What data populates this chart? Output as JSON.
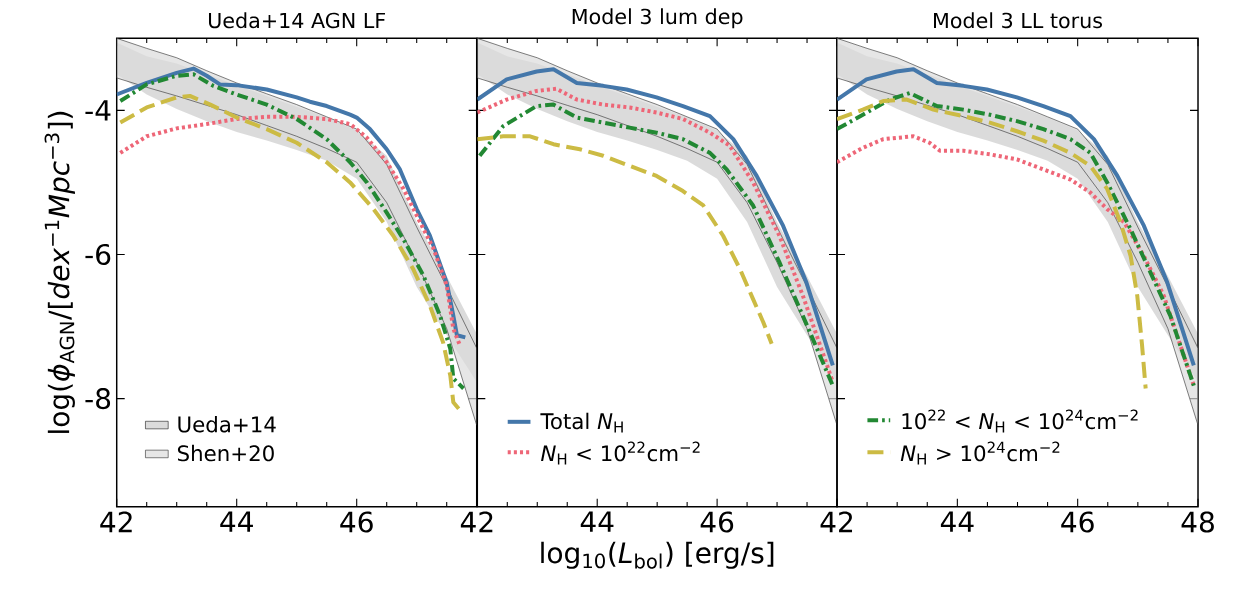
{
  "chart_data": [
    {
      "type": "line",
      "title": "Ueda+14 AGN LF",
      "ylabel": "log(*ϕ*$_{AGN}$/[*dex*$^{−1}$*Mpc*$^{−3}$])",
      "xlim": [
        42,
        48
      ],
      "ylim": [
        -9.5,
        -3
      ],
      "xticks": [
        42,
        44,
        46,
        {
          "value": 48,
          "label": null
        }
      ],
      "yticks": [
        -4,
        -6,
        -8
      ],
      "legend": "bottom left",
      "series": [
        {
          "name": "Ueda+14",
          "color": "#000000",
          "x": [
            42,
            42.5,
            43,
            43.5,
            44,
            44.5,
            45,
            45.5,
            46,
            46.5,
            47,
            47.5,
            48
          ],
          "values": [
            null,
            null,
            null,
            null,
            null,
            null,
            null,
            null,
            null,
            null,
            null,
            null,
            null
          ],
          "upper": [
            -3.06,
            -3.25,
            -3.35,
            -3.5,
            -3.65,
            -3.8,
            -3.95,
            -4.1,
            -4.28,
            -4.63,
            -5.55,
            -6.3,
            -7.1
          ],
          "lower": [
            -3.5,
            -3.78,
            -3.98,
            -4.15,
            -4.3,
            -4.42,
            -4.55,
            -4.7,
            -4.95,
            -5.55,
            -6.45,
            -7.12,
            -7.77
          ]
        },
        {
          "name": "Shen+20",
          "color": "#dcdcdc",
          "x": [
            42,
            42.5,
            43,
            43.5,
            44,
            44.5,
            45,
            45.5,
            46,
            46.5,
            47,
            47.5,
            48
          ],
          "values": [
            null,
            null,
            null,
            null,
            null,
            null,
            null,
            null,
            null,
            null,
            null,
            null,
            null
          ],
          "upper": [
            -3.0,
            -3.14,
            -3.27,
            -3.45,
            -3.62,
            -3.77,
            -3.92,
            -4.09,
            -4.26,
            -4.75,
            -5.62,
            -6.45,
            -7.3
          ],
          "lower": [
            -3.55,
            -3.68,
            -3.8,
            -3.93,
            -4.06,
            -4.21,
            -4.36,
            -4.53,
            -4.72,
            -5.28,
            -6.11,
            -7.03,
            -8.37
          ]
        },
        {
          "color": "#4477aa",
          "line_style": "solid",
          "x": [
            42,
            42.5,
            43,
            43.28,
            43.5,
            43.72,
            44,
            44.5,
            45,
            45.22,
            45.5,
            45.89,
            46,
            46.22,
            46.5,
            46.72,
            47,
            47.22,
            47.5,
            47.61,
            47.67,
            47.81
          ],
          "values": [
            -3.78,
            -3.62,
            -3.48,
            -3.42,
            -3.52,
            -3.64,
            -3.65,
            -3.71,
            -3.82,
            -3.88,
            -3.94,
            -4.06,
            -4.1,
            -4.26,
            -4.54,
            -4.82,
            -5.37,
            -5.74,
            -6.39,
            -6.85,
            -7.12,
            -7.15
          ]
        },
        {
          "color": "#ee6677",
          "line_style": "dotted",
          "x": [
            42.06,
            42.5,
            43,
            43.5,
            44,
            44.5,
            45,
            45.5,
            45.89,
            46.17,
            46.5,
            46.78,
            47,
            47.28,
            47.5,
            47.61,
            47.72
          ],
          "values": [
            -4.59,
            -4.36,
            -4.25,
            -4.19,
            -4.12,
            -4.09,
            -4.09,
            -4.12,
            -4.19,
            -4.38,
            -4.72,
            -5.09,
            -5.46,
            -5.92,
            -6.43,
            -7.03,
            -7.26
          ]
        },
        {
          "color": "#228833",
          "line_style": "dashdot",
          "x": [
            42.06,
            42.5,
            43,
            43.28,
            43.61,
            44,
            44.5,
            45,
            45.5,
            45.89,
            46.17,
            46.5,
            46.78,
            47.11,
            47.39,
            47.56,
            47.61,
            47.78
          ],
          "values": [
            -3.87,
            -3.64,
            -3.52,
            -3.5,
            -3.66,
            -3.78,
            -3.92,
            -4.12,
            -4.4,
            -4.72,
            -5.0,
            -5.42,
            -5.79,
            -6.29,
            -6.85,
            -7.31,
            -7.72,
            -7.86
          ]
        },
        {
          "color": "#ccbb44",
          "line_style": "dashed",
          "x": [
            42.06,
            42.5,
            43,
            43.22,
            43.56,
            44,
            44.5,
            45,
            45.5,
            45.89,
            46.28,
            46.61,
            46.94,
            47.22,
            47.44,
            47.56,
            47.61,
            47.72
          ],
          "values": [
            -4.17,
            -3.96,
            -3.82,
            -3.8,
            -3.92,
            -4.1,
            -4.26,
            -4.45,
            -4.72,
            -5.0,
            -5.37,
            -5.74,
            -6.2,
            -6.71,
            -7.22,
            -7.68,
            -8.05,
            -8.16
          ]
        }
      ]
    },
    {
      "type": "line",
      "title": "Model 3 lum dep",
      "xlabel": "log$_{10}$(*L*$_{bol}$) [erg/s]",
      "xlim": [
        42,
        48
      ],
      "ylim": [
        -9.5,
        -3
      ],
      "xticks": [
        42,
        44,
        46,
        {
          "value": 48,
          "label": null
        }
      ],
      "yticks": [
        -4,
        -6,
        -8
      ],
      "tick_labels": "x",
      "legend": "bottom left",
      "series": [
        {
          "color": "#000000",
          "x": [
            42,
            42.5,
            43,
            43.5,
            44,
            44.5,
            45,
            45.5,
            46,
            46.5,
            47,
            47.5,
            48
          ],
          "values": [
            null,
            null,
            null,
            null,
            null,
            null,
            null,
            null,
            null,
            null,
            null,
            null,
            null
          ],
          "upper": [
            -3.06,
            -3.25,
            -3.35,
            -3.5,
            -3.65,
            -3.8,
            -3.95,
            -4.1,
            -4.28,
            -4.63,
            -5.55,
            -6.3,
            -7.1
          ],
          "lower": [
            -3.5,
            -3.78,
            -3.98,
            -4.15,
            -4.3,
            -4.42,
            -4.55,
            -4.7,
            -4.95,
            -5.55,
            -6.45,
            -7.12,
            -7.77
          ]
        },
        {
          "color": "#dcdcdc",
          "x": [
            42,
            42.5,
            43,
            43.5,
            44,
            44.5,
            45,
            45.5,
            46,
            46.5,
            47,
            47.5,
            48
          ],
          "values": [
            null,
            null,
            null,
            null,
            null,
            null,
            null,
            null,
            null,
            null,
            null,
            null,
            null
          ],
          "upper": [
            -3.0,
            -3.14,
            -3.27,
            -3.45,
            -3.62,
            -3.77,
            -3.92,
            -4.09,
            -4.26,
            -4.75,
            -5.62,
            -6.45,
            -7.3
          ],
          "lower": [
            -3.55,
            -3.68,
            -3.8,
            -3.93,
            -4.06,
            -4.21,
            -4.36,
            -4.53,
            -4.72,
            -5.28,
            -6.11,
            -7.03,
            -8.37
          ]
        },
        {
          "name": "Total *N*$_{H}$",
          "color": "#4477aa",
          "line_style": "solid",
          "x": [
            42,
            42.49,
            42.99,
            43.27,
            43.66,
            44.1,
            44.49,
            44.99,
            45.43,
            45.88,
            46.27,
            46.66,
            47.1,
            47.49,
            47.93
          ],
          "values": [
            -3.85,
            -3.57,
            -3.46,
            -3.43,
            -3.62,
            -3.66,
            -3.71,
            -3.82,
            -3.94,
            -4.08,
            -4.4,
            -4.91,
            -5.6,
            -6.39,
            -7.54
          ]
        },
        {
          "name": "*N*$_{H}$ < 10$^{22}$cm$^{−2}$",
          "color": "#ee6677",
          "line_style": "dotted",
          "x": [
            42,
            42.49,
            42.99,
            43.32,
            43.66,
            44.1,
            44.54,
            44.99,
            45.43,
            45.88,
            46.21,
            46.6,
            47.04,
            47.43,
            47.93
          ],
          "values": [
            -4.03,
            -3.85,
            -3.73,
            -3.7,
            -3.85,
            -3.92,
            -3.96,
            -4.03,
            -4.12,
            -4.31,
            -4.49,
            -5.0,
            -5.74,
            -6.57,
            -7.77
          ]
        },
        {
          "color": "#228833",
          "line_style": "dashdot",
          "x": [
            42.04,
            42.43,
            42.99,
            43.27,
            43.66,
            44.1,
            44.54,
            44.99,
            45.43,
            45.88,
            46.16,
            46.6,
            47.04,
            47.43,
            47.93
          ],
          "values": [
            -4.63,
            -4.22,
            -3.94,
            -3.92,
            -4.1,
            -4.17,
            -4.24,
            -4.31,
            -4.4,
            -4.59,
            -4.82,
            -5.32,
            -6.11,
            -6.85,
            -7.82
          ]
        },
        {
          "color": "#ccbb44",
          "line_style": "dashed",
          "x": [
            42,
            42.43,
            42.88,
            43.27,
            43.71,
            44.1,
            44.54,
            44.99,
            45.43,
            45.77,
            46.1,
            46.38,
            46.6,
            46.77,
            46.91
          ],
          "values": [
            -4.4,
            -4.36,
            -4.36,
            -4.47,
            -4.54,
            -4.63,
            -4.77,
            -4.91,
            -5.12,
            -5.32,
            -5.74,
            -6.2,
            -6.62,
            -6.94,
            -7.24
          ]
        }
      ]
    },
    {
      "type": "line",
      "title": "Model 3 LL torus",
      "xlim": [
        42,
        48
      ],
      "ylim": [
        -9.5,
        -3
      ],
      "xticks": [
        42,
        44,
        46,
        48
      ],
      "yticks": [
        -4,
        -6,
        -8
      ],
      "tick_labels": "x",
      "legend": "bottom left",
      "series": [
        {
          "color": "#000000",
          "x": [
            42,
            42.5,
            43,
            43.5,
            44,
            44.5,
            45,
            45.5,
            46,
            46.5,
            47,
            47.5,
            48
          ],
          "values": [
            null,
            null,
            null,
            null,
            null,
            null,
            null,
            null,
            null,
            null,
            null,
            null,
            null
          ],
          "upper": [
            -3.06,
            -3.25,
            -3.35,
            -3.5,
            -3.65,
            -3.8,
            -3.95,
            -4.1,
            -4.28,
            -4.63,
            -5.55,
            -6.3,
            -7.1
          ],
          "lower": [
            -3.5,
            -3.78,
            -3.98,
            -4.15,
            -4.3,
            -4.42,
            -4.55,
            -4.7,
            -4.95,
            -5.55,
            -6.45,
            -7.12,
            -7.77
          ]
        },
        {
          "color": "#dcdcdc",
          "x": [
            42,
            42.5,
            43,
            43.5,
            44,
            44.5,
            45,
            45.5,
            46,
            46.5,
            47,
            47.5,
            48
          ],
          "values": [
            null,
            null,
            null,
            null,
            null,
            null,
            null,
            null,
            null,
            null,
            null,
            null,
            null
          ],
          "upper": [
            -3.0,
            -3.14,
            -3.27,
            -3.45,
            -3.62,
            -3.77,
            -3.92,
            -4.09,
            -4.26,
            -4.75,
            -5.62,
            -6.45,
            -7.3
          ],
          "lower": [
            -3.55,
            -3.68,
            -3.8,
            -3.93,
            -4.06,
            -4.21,
            -4.36,
            -4.53,
            -4.72,
            -5.28,
            -6.11,
            -7.03,
            -8.37
          ]
        },
        {
          "color": "#4477aa",
          "line_style": "solid",
          "x": [
            42,
            42.49,
            42.99,
            43.27,
            43.66,
            44.1,
            44.49,
            44.99,
            45.43,
            45.88,
            46.27,
            46.66,
            47.1,
            47.49,
            47.93
          ],
          "values": [
            -3.85,
            -3.57,
            -3.46,
            -3.43,
            -3.62,
            -3.66,
            -3.71,
            -3.82,
            -3.94,
            -4.08,
            -4.4,
            -4.91,
            -5.6,
            -6.39,
            -7.54
          ]
        },
        {
          "color": "#ee6677",
          "line_style": "dotted",
          "x": [
            42,
            42.43,
            42.77,
            43.27,
            43.54,
            43.71,
            44.1,
            44.54,
            44.99,
            45.43,
            45.88,
            46.21,
            46.49,
            46.77,
            47.1,
            47.43,
            47.93
          ],
          "values": [
            -4.72,
            -4.52,
            -4.4,
            -4.36,
            -4.45,
            -4.56,
            -4.56,
            -4.61,
            -4.68,
            -4.82,
            -4.96,
            -5.14,
            -5.37,
            -5.55,
            -6.02,
            -6.57,
            -7.82
          ]
        },
        {
          "name": "10$^{22}$ < *N*$_{H}$ < 10$^{24}$cm$^{−2}$",
          "color": "#228833",
          "line_style": "dashdot",
          "x": [
            42,
            42.43,
            42.88,
            43.21,
            43.66,
            44.1,
            44.54,
            44.99,
            45.43,
            45.88,
            46.21,
            46.49,
            46.88,
            47.21,
            47.54,
            47.93
          ],
          "values": [
            -4.26,
            -4.06,
            -3.85,
            -3.76,
            -3.94,
            -3.99,
            -4.06,
            -4.15,
            -4.26,
            -4.4,
            -4.59,
            -5.0,
            -5.65,
            -6.25,
            -6.85,
            -7.82
          ]
        },
        {
          "name": "*N*$_{H}$ > 10$^{24}$cm$^{−2}$",
          "color": "#ccbb44",
          "line_style": "dashed",
          "x": [
            42,
            42.43,
            42.77,
            43.16,
            43.6,
            44.1,
            44.54,
            44.99,
            45.43,
            45.88,
            46.21,
            46.49,
            46.71,
            46.88,
            46.99,
            47.07,
            47.13
          ],
          "values": [
            -4.12,
            -3.99,
            -3.87,
            -3.85,
            -3.99,
            -4.08,
            -4.17,
            -4.29,
            -4.42,
            -4.59,
            -4.77,
            -5.09,
            -5.55,
            -6.02,
            -6.57,
            -7.26,
            -7.86
          ]
        }
      ]
    }
  ]
}
